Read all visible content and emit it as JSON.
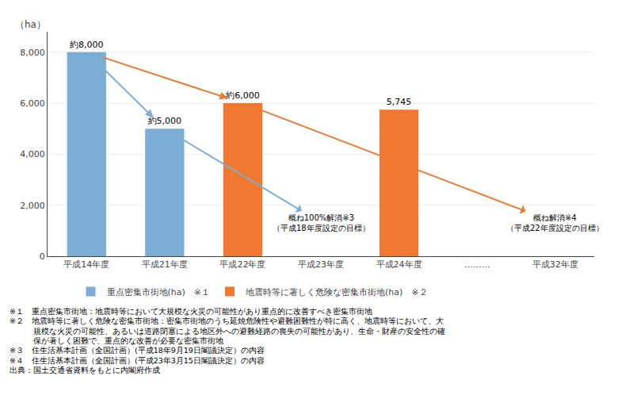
{
  "chart_data": {
    "type": "bar",
    "ylabel": "（ha）",
    "categories": [
      "平成14年度",
      "平成21年度",
      "平成22年度",
      "平成23年度",
      "平成24年度",
      "………",
      "平成32年度"
    ],
    "series": [
      {
        "name": "重点密集市街地(ha)　※１",
        "color": "#7CADD4",
        "values": [
          8000,
          5000,
          null,
          null,
          null,
          null,
          null
        ],
        "value_labels": [
          "約8,000",
          "約5,000",
          null,
          null,
          null,
          null,
          null
        ]
      },
      {
        "name": "地震時等に著しく危険な密集市街地(ha)　※２",
        "color": "#F07830",
        "values": [
          null,
          null,
          6000,
          null,
          5745,
          null,
          null
        ],
        "value_labels": [
          null,
          null,
          "約6,000",
          null,
          "5,745",
          null,
          null
        ]
      }
    ],
    "data_labels": true,
    "ylim": [
      0,
      8800
    ],
    "yticks": [
      0,
      {
        "value": 2000,
        "label": "2,000"
      },
      {
        "value": 4000,
        "label": "4,000"
      },
      {
        "value": 6000,
        "label": "6,000"
      },
      {
        "value": 8000,
        "label": "8,000"
      }
    ],
    "grid": true,
    "legend": "bottom",
    "annotations": [
      {
        "text": "概ね100%解消※3\n（平成18年度設定の目標）",
        "category": "平成23年度"
      },
      {
        "text": "概ね解消※4\n（平成22年度設定の目標）",
        "category": "平成32年度"
      }
    ],
    "footnotes": [
      "※１　重点密集市街地：地震時等において大規模な火災の可能性があり重点的に改善すべき密集市街地",
      "※２　地震時等に著しく危険な密集市街地：密集市街地のうち延焼危険性や避難困難性が特に高く、地震時等において、大",
      "　　　規模な火災の可能性、あるいは道路閉塞による地区外への避難経路の喪失の可能性があり、生命・財産の安全性の確",
      "　　　保が著しく困難で、重点的な改善が必要な密集市街地",
      "※３　住生活基本計画（全国計画）(平成18年9月19日閣議決定）の内容",
      "※４　住生活基本計画（全国計画）(平成23年3月15日閣議決定）の内容",
      "出典：国土交通省資料をもとに内閣府作成"
    ]
  }
}
